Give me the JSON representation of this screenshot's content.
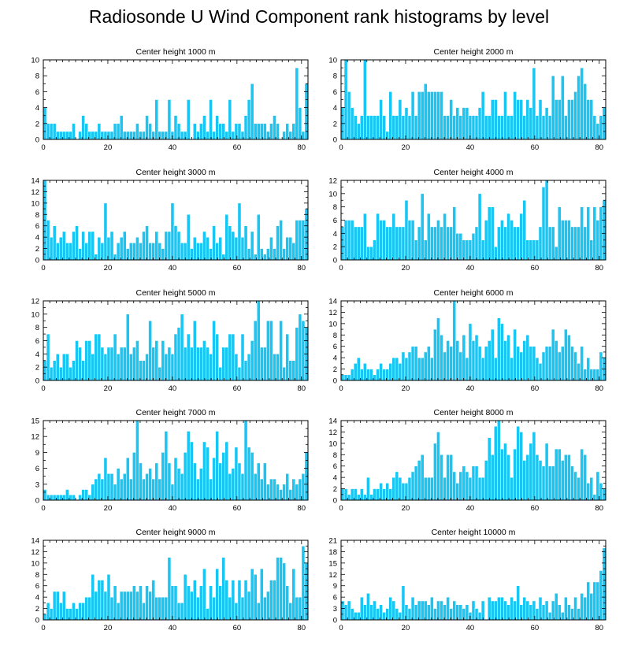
{
  "title": "Radiosonde U Wind Component rank histograms by level",
  "bar_color": "#19c5f2",
  "chart_data": [
    {
      "type": "bar",
      "title": "Center height 1000 m",
      "xlabel": "",
      "ylabel": "",
      "xlim": [
        0,
        82
      ],
      "ylim": [
        0,
        10
      ],
      "yticks": [
        0,
        2,
        4,
        6,
        8,
        10
      ],
      "xticks": [
        0,
        20,
        40,
        60,
        80
      ],
      "values": [
        4,
        2,
        2,
        2,
        1,
        1,
        1,
        1,
        1,
        2,
        0,
        1,
        3,
        2,
        1,
        1,
        1,
        2,
        1,
        1,
        1,
        1,
        2,
        2,
        3,
        1,
        1,
        1,
        1,
        2,
        1,
        1,
        3,
        2,
        1,
        5,
        1,
        1,
        1,
        5,
        1,
        3,
        2,
        1,
        1,
        5,
        0,
        2,
        1,
        2,
        3,
        1,
        5,
        1,
        3,
        2,
        2,
        1,
        5,
        1,
        2,
        2,
        1,
        3,
        5,
        7,
        2,
        2,
        2,
        2,
        1,
        2,
        3,
        2,
        0,
        1,
        2,
        1,
        2,
        9,
        4,
        1,
        7
      ]
    },
    {
      "type": "bar",
      "title": "Center height 2000 m",
      "xlabel": "",
      "ylabel": "",
      "xlim": [
        0,
        82
      ],
      "ylim": [
        0,
        10
      ],
      "yticks": [
        0,
        2,
        4,
        6,
        8,
        10
      ],
      "xticks": [
        0,
        20,
        40,
        60,
        80
      ],
      "values": [
        4,
        10,
        6,
        4,
        3,
        2,
        3,
        10,
        3,
        3,
        3,
        3,
        5,
        3,
        1,
        6,
        3,
        3,
        5,
        3,
        4,
        3,
        6,
        3,
        6,
        6,
        7,
        6,
        6,
        6,
        6,
        6,
        3,
        3,
        5,
        3,
        4,
        3,
        4,
        4,
        3,
        3,
        3,
        4,
        6,
        3,
        3,
        5,
        5,
        3,
        3,
        6,
        3,
        3,
        6,
        5,
        5,
        3,
        5,
        4,
        9,
        3,
        5,
        3,
        4,
        3,
        8,
        5,
        5,
        8,
        3,
        5,
        5,
        6,
        8,
        9,
        7,
        5,
        5,
        3,
        2,
        3,
        4
      ]
    },
    {
      "type": "bar",
      "title": "Center height 3000 m",
      "xlabel": "",
      "ylabel": "",
      "xlim": [
        0,
        82
      ],
      "ylim": [
        0,
        14
      ],
      "yticks": [
        0,
        2,
        4,
        6,
        8,
        10,
        12,
        14
      ],
      "xticks": [
        0,
        20,
        40,
        60,
        80
      ],
      "values": [
        14,
        7,
        4,
        6,
        3,
        4,
        5,
        3,
        3,
        5,
        6,
        2,
        5,
        3,
        5,
        5,
        1,
        4,
        3,
        10,
        4,
        5,
        1,
        3,
        4,
        5,
        2,
        3,
        3,
        4,
        3,
        5,
        6,
        3,
        3,
        5,
        3,
        2,
        5,
        5,
        10,
        6,
        5,
        3,
        3,
        8,
        2,
        4,
        3,
        3,
        5,
        4,
        2,
        6,
        3,
        4,
        1,
        8,
        6,
        5,
        4,
        10,
        4,
        6,
        2,
        5,
        1,
        8,
        2,
        1,
        2,
        4,
        2,
        6,
        7,
        2,
        4,
        4,
        3,
        7,
        7,
        7,
        9
      ]
    },
    {
      "type": "bar",
      "title": "Center height 4000 m",
      "xlabel": "",
      "ylabel": "",
      "xlim": [
        0,
        82
      ],
      "ylim": [
        0,
        12
      ],
      "yticks": [
        0,
        2,
        4,
        6,
        8,
        10,
        12
      ],
      "xticks": [
        0,
        20,
        40,
        60,
        80
      ],
      "values": [
        5,
        6,
        6,
        6,
        5,
        5,
        5,
        7,
        2,
        2,
        3,
        7,
        6,
        6,
        5,
        5,
        7,
        5,
        5,
        5,
        9,
        6,
        6,
        3,
        5,
        10,
        3,
        7,
        5,
        5,
        6,
        5,
        7,
        5,
        5,
        8,
        4,
        4,
        3,
        3,
        3,
        4,
        5,
        10,
        3,
        6,
        8,
        8,
        2,
        5,
        6,
        5,
        7,
        6,
        5,
        5,
        7,
        9,
        3,
        3,
        3,
        3,
        5,
        11,
        12,
        5,
        5,
        2,
        8,
        6,
        6,
        6,
        5,
        5,
        5,
        8,
        5,
        8,
        3,
        8,
        6,
        8,
        9
      ]
    },
    {
      "type": "bar",
      "title": "Center height 5000 m",
      "xlabel": "",
      "ylabel": "",
      "xlim": [
        0,
        82
      ],
      "ylim": [
        0,
        12
      ],
      "yticks": [
        0,
        2,
        4,
        6,
        8,
        10,
        12
      ],
      "xticks": [
        0,
        20,
        40,
        60,
        80
      ],
      "values": [
        3,
        7,
        2,
        3,
        4,
        2,
        4,
        4,
        2,
        3,
        6,
        5,
        3,
        6,
        6,
        4,
        7,
        7,
        5,
        4,
        5,
        5,
        7,
        4,
        5,
        5,
        10,
        4,
        5,
        6,
        3,
        3,
        4,
        9,
        5,
        6,
        2,
        6,
        4,
        5,
        4,
        7,
        8,
        10,
        5,
        7,
        5,
        9,
        5,
        5,
        6,
        5,
        4,
        9,
        7,
        2,
        5,
        5,
        7,
        7,
        4,
        2,
        7,
        3,
        4,
        6,
        9,
        12,
        5,
        5,
        9,
        9,
        4,
        4,
        9,
        2,
        7,
        3,
        3,
        8,
        10,
        9,
        8
      ]
    },
    {
      "type": "bar",
      "title": "Center height 6000 m",
      "xlabel": "",
      "ylabel": "",
      "xlim": [
        0,
        82
      ],
      "ylim": [
        0,
        14
      ],
      "yticks": [
        0,
        2,
        4,
        6,
        8,
        10,
        12,
        14
      ],
      "xticks": [
        0,
        20,
        40,
        60,
        80
      ],
      "values": [
        1,
        1,
        1,
        2,
        3,
        4,
        2,
        3,
        2,
        2,
        1,
        2,
        3,
        2,
        2,
        3,
        4,
        4,
        3,
        5,
        4,
        5,
        6,
        6,
        4,
        4,
        5,
        6,
        4,
        9,
        11,
        8,
        5,
        7,
        6,
        14,
        7,
        5,
        8,
        4,
        10,
        7,
        8,
        6,
        4,
        6,
        7,
        9,
        4,
        11,
        10,
        7,
        8,
        4,
        9,
        6,
        5,
        7,
        8,
        6,
        6,
        4,
        3,
        5,
        6,
        6,
        9,
        7,
        5,
        6,
        9,
        8,
        6,
        5,
        3,
        6,
        2,
        4,
        2,
        2,
        2,
        5,
        4
      ]
    },
    {
      "type": "bar",
      "title": "Center height 7000 m",
      "xlabel": "",
      "ylabel": "",
      "xlim": [
        0,
        82
      ],
      "ylim": [
        0,
        15
      ],
      "yticks": [
        0,
        3,
        6,
        9,
        12,
        15
      ],
      "xticks": [
        0,
        20,
        40,
        60,
        80
      ],
      "values": [
        2,
        1,
        1,
        1,
        1,
        1,
        1,
        2,
        1,
        1,
        0,
        1,
        2,
        2,
        1,
        3,
        4,
        5,
        4,
        8,
        5,
        5,
        3,
        6,
        4,
        5,
        8,
        4,
        9,
        15,
        7,
        4,
        5,
        6,
        4,
        7,
        4,
        9,
        13,
        7,
        3,
        8,
        6,
        5,
        9,
        13,
        11,
        7,
        4,
        6,
        11,
        10,
        4,
        8,
        13,
        7,
        9,
        11,
        5,
        6,
        10,
        7,
        5,
        15,
        10,
        9,
        5,
        7,
        4,
        7,
        3,
        4,
        4,
        3,
        2,
        3,
        5,
        2,
        4,
        3,
        4,
        5,
        9
      ]
    },
    {
      "type": "bar",
      "title": "Center height 8000 m",
      "xlabel": "",
      "ylabel": "",
      "xlim": [
        0,
        82
      ],
      "ylim": [
        0,
        14
      ],
      "yticks": [
        0,
        2,
        4,
        6,
        8,
        10,
        12,
        14
      ],
      "xticks": [
        0,
        20,
        40,
        60,
        80
      ],
      "values": [
        2,
        2,
        1,
        2,
        2,
        1,
        2,
        1,
        4,
        1,
        2,
        2,
        3,
        2,
        3,
        2,
        4,
        5,
        4,
        3,
        3,
        4,
        5,
        6,
        7,
        8,
        4,
        4,
        4,
        10,
        12,
        8,
        4,
        8,
        8,
        5,
        3,
        5,
        6,
        5,
        4,
        6,
        6,
        4,
        4,
        7,
        11,
        8,
        13,
        14,
        9,
        10,
        8,
        4,
        9,
        13,
        12,
        7,
        8,
        10,
        12,
        8,
        7,
        6,
        10,
        6,
        6,
        9,
        9,
        7,
        8,
        8,
        6,
        5,
        4,
        9,
        8,
        3,
        4,
        1,
        5,
        3,
        2
      ]
    },
    {
      "type": "bar",
      "title": "Center height 9000 m",
      "xlabel": "",
      "ylabel": "",
      "xlim": [
        0,
        82
      ],
      "ylim": [
        0,
        14
      ],
      "yticks": [
        0,
        2,
        4,
        6,
        8,
        10,
        12,
        14
      ],
      "xticks": [
        0,
        20,
        40,
        60,
        80
      ],
      "values": [
        1,
        3,
        2,
        5,
        5,
        3,
        5,
        2,
        2,
        3,
        2,
        3,
        3,
        4,
        4,
        8,
        5,
        7,
        7,
        5,
        8,
        4,
        6,
        3,
        5,
        5,
        5,
        5,
        6,
        5,
        6,
        3,
        6,
        5,
        7,
        4,
        4,
        4,
        4,
        11,
        6,
        6,
        3,
        3,
        8,
        6,
        5,
        7,
        4,
        6,
        9,
        2,
        6,
        4,
        9,
        6,
        11,
        7,
        4,
        7,
        3,
        7,
        4,
        7,
        5,
        9,
        8,
        3,
        9,
        4,
        5,
        7,
        7,
        11,
        11,
        10,
        6,
        3,
        9,
        4,
        4,
        13,
        10
      ]
    },
    {
      "type": "bar",
      "title": "Center height 10000 m",
      "xlabel": "",
      "ylabel": "",
      "xlim": [
        0,
        82
      ],
      "ylim": [
        0,
        21
      ],
      "yticks": [
        0,
        3,
        6,
        9,
        12,
        15,
        18,
        21
      ],
      "xticks": [
        0,
        20,
        40,
        60,
        80
      ],
      "values": [
        5,
        4,
        5,
        3,
        2,
        2,
        6,
        4,
        7,
        4,
        5,
        3,
        4,
        2,
        3,
        6,
        5,
        3,
        2,
        9,
        4,
        3,
        6,
        4,
        5,
        5,
        5,
        4,
        6,
        3,
        5,
        5,
        4,
        6,
        3,
        5,
        4,
        4,
        3,
        4,
        2,
        5,
        3,
        2,
        5,
        0,
        6,
        5,
        5,
        6,
        6,
        5,
        4,
        6,
        5,
        9,
        4,
        6,
        5,
        4,
        5,
        3,
        6,
        4,
        5,
        2,
        5,
        7,
        4,
        2,
        6,
        4,
        3,
        6,
        3,
        7,
        6,
        10,
        7,
        10,
        10,
        13,
        19
      ]
    }
  ]
}
